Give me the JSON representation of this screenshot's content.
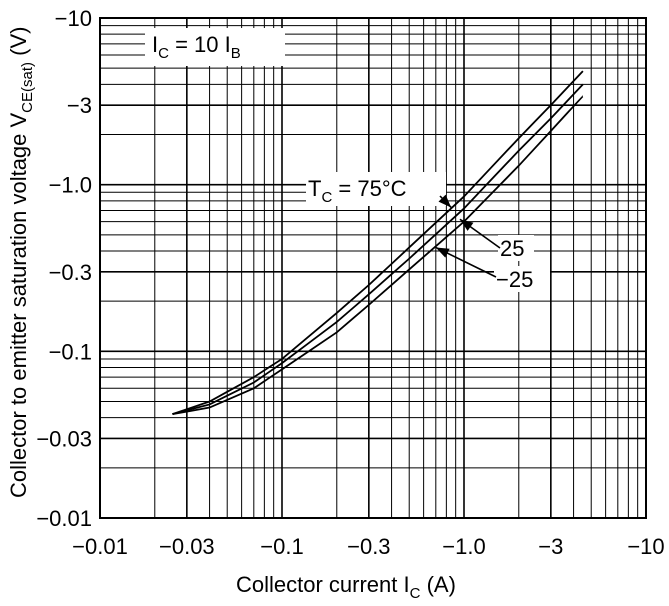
{
  "chart_data": {
    "type": "line",
    "xscale": "log",
    "yscale": "log",
    "xlim": [
      -0.01,
      -10
    ],
    "ylim": [
      -0.01,
      -10
    ],
    "x_ticks": [
      "−0.01",
      "−0.03",
      "−0.1",
      "−0.3",
      "−1.0",
      "−3",
      "−10"
    ],
    "y_ticks": [
      "−10",
      "−3",
      "−1.0",
      "−0.3",
      "−0.1",
      "−0.03",
      "−0.01"
    ],
    "xlabel": {
      "main": "Collector current  I",
      "sub": "C",
      "unit": "  (A)"
    },
    "ylabel": {
      "main": "Collector to emitter saturation voltage  V",
      "sub": "CE(sat)",
      "unit": "  (V)"
    },
    "condition": {
      "text": "I",
      "sub1": "C",
      "mid": " = 10 I",
      "sub2": "B"
    },
    "series": [
      {
        "name": "75",
        "label_main": "T",
        "label_sub": "C",
        "label_rest": " = 75°C",
        "x": [
          -0.025,
          -0.04,
          -0.07,
          -0.1,
          -0.2,
          -0.3,
          -0.5,
          -1.0,
          -2.0,
          -3.0,
          -4.5
        ],
        "y": [
          -0.042,
          -0.05,
          -0.07,
          -0.09,
          -0.17,
          -0.25,
          -0.42,
          -0.85,
          -1.9,
          -3.0,
          -4.8
        ]
      },
      {
        "name": "25",
        "label_main": "25",
        "x": [
          -0.025,
          -0.04,
          -0.07,
          -0.1,
          -0.2,
          -0.3,
          -0.5,
          -1.0,
          -2.0,
          -3.0,
          -4.5
        ],
        "y": [
          -0.042,
          -0.048,
          -0.065,
          -0.085,
          -0.15,
          -0.22,
          -0.36,
          -0.72,
          -1.6,
          -2.5,
          -4.0
        ]
      },
      {
        "name": "-25",
        "label_main": "−25",
        "x": [
          -0.025,
          -0.04,
          -0.07,
          -0.1,
          -0.2,
          -0.3,
          -0.5,
          -1.0,
          -2.0,
          -3.0,
          -4.5
        ],
        "y": [
          -0.042,
          -0.046,
          -0.06,
          -0.078,
          -0.13,
          -0.19,
          -0.31,
          -0.6,
          -1.3,
          -2.1,
          -3.4
        ]
      }
    ]
  }
}
